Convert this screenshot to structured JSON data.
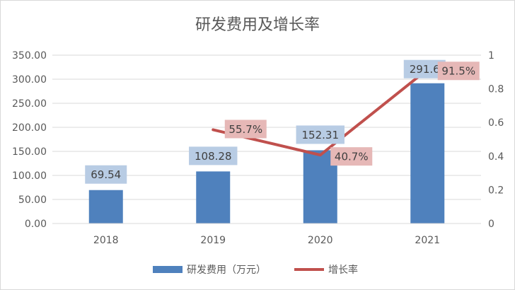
{
  "chart_data": {
    "type": "bar",
    "title": "研发费用及增长率",
    "categories": [
      "2018",
      "2019",
      "2020",
      "2021"
    ],
    "series": [
      {
        "name": "研发费用（万元）",
        "type": "bar",
        "axis": "left",
        "values": [
          69.54,
          108.28,
          152.31,
          291.6
        ],
        "labels": [
          "69.54",
          "108.28",
          "152.31",
          "291.6"
        ],
        "color": "#4f81bd"
      },
      {
        "name": "增长率",
        "type": "line",
        "axis": "right",
        "values": [
          null,
          0.557,
          0.407,
          0.915
        ],
        "labels": [
          "",
          "55.7%",
          "40.7%",
          "91.5%"
        ],
        "color": "#c0504d"
      }
    ],
    "y_left": {
      "min": 0,
      "max": 350,
      "ticks": [
        "0.00",
        "50.00",
        "100.00",
        "150.00",
        "200.00",
        "250.00",
        "300.00",
        "350.00"
      ]
    },
    "y_right": {
      "min": 0,
      "max": 1,
      "ticks": [
        "0",
        "0.2",
        "0.4",
        "0.6",
        "0.8",
        "1"
      ]
    },
    "grid": true,
    "legend": "bottom",
    "colors": {
      "bar_label_bg": "#b8cce4",
      "line_label_bg": "#e6b8b7",
      "grid": "#d9d9d9"
    }
  }
}
